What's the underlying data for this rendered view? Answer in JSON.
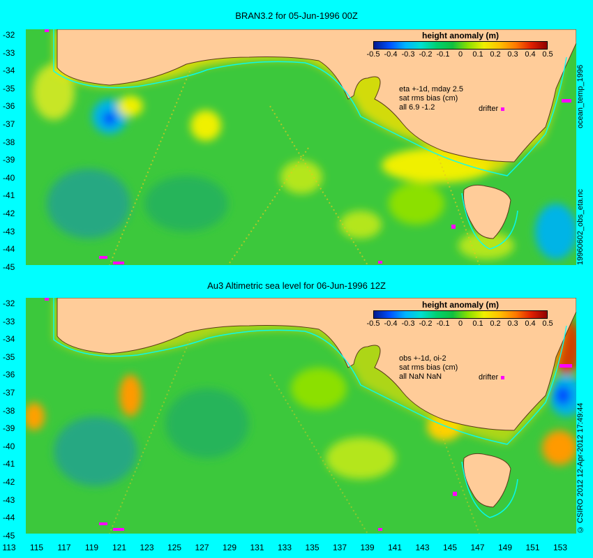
{
  "panels": [
    {
      "title": "BRAN3.2 for 05-Jun-1996 00Z",
      "annotation": [
        "eta +-1d, mday 2.5",
        "sat rms bias (cm)",
        "all 6.9 -1.2"
      ],
      "right_label": "ocean_temp_1996",
      "right_label_2": "19960602_obs_eta.nc"
    },
    {
      "title": "Au3 Altimetric sea level  for 06-Jun-1996 12Z",
      "annotation": [
        "obs +-1d, oi-2",
        "sat rms bias (cm)",
        "all NaN NaN"
      ],
      "right_label": "© CSIRO 2012  12-Apr-2012 17:49:44"
    }
  ],
  "colorbar": {
    "label": "height anomaly  (m)",
    "ticks": [
      "-0.5",
      "-0.4",
      "-0.3",
      "-0.2",
      "-0.1",
      "0",
      "0.1",
      "0.2",
      "0.3",
      "0.4",
      "0.5"
    ]
  },
  "drifter_label": "drifter",
  "y_ticks": [
    "-32",
    "-33",
    "-34",
    "-35",
    "-36",
    "-37",
    "-38",
    "-39",
    "-40",
    "-41",
    "-42",
    "-43",
    "-44",
    "-45"
  ],
  "x_ticks": [
    "113",
    "115",
    "117",
    "119",
    "121",
    "123",
    "125",
    "127",
    "129",
    "131",
    "133",
    "135",
    "137",
    "139",
    "141",
    "143",
    "145",
    "147",
    "149",
    "151",
    "153"
  ],
  "colors": {
    "background": "#00FFFF",
    "land": "#FFCC99",
    "ocean": "#3CC83C",
    "coast": "#00FFFF",
    "drifter": "#FF00FF"
  }
}
